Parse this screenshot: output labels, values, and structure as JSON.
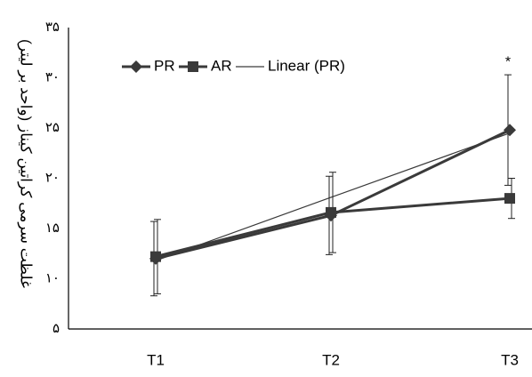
{
  "chart_data": {
    "type": "line",
    "title": "",
    "xlabel": "",
    "ylabel": "غلظت سرمی کراتین کیناز (واحد بر لیتر)",
    "categories": [
      "T1",
      "T2",
      "T3"
    ],
    "ylim": [
      5,
      35
    ],
    "yticks": [
      5,
      10,
      15,
      20,
      25,
      30,
      35
    ],
    "ytick_labels": [
      "۵",
      "۱۰",
      "۱۵",
      "۲۰",
      "۲۵",
      "۳۰",
      "۳۵"
    ],
    "legend_position": "top-left",
    "grid": false,
    "series": [
      {
        "name": "PR",
        "marker": "diamond",
        "color": "#3a3a3a",
        "values": [
          12.0,
          16.3,
          24.8
        ],
        "error": [
          3.7,
          3.9,
          5.5
        ]
      },
      {
        "name": "AR",
        "marker": "square",
        "color": "#3a3a3a",
        "values": [
          12.2,
          16.6,
          18.0
        ],
        "error": [
          3.7,
          4.0,
          2.0
        ]
      }
    ],
    "trendline": {
      "name": "Linear (PR)",
      "values": [
        11.8,
        18.1,
        24.5
      ],
      "color": "#3a3a3a"
    },
    "annotations": [
      {
        "category": "T3",
        "text": "*"
      }
    ]
  }
}
